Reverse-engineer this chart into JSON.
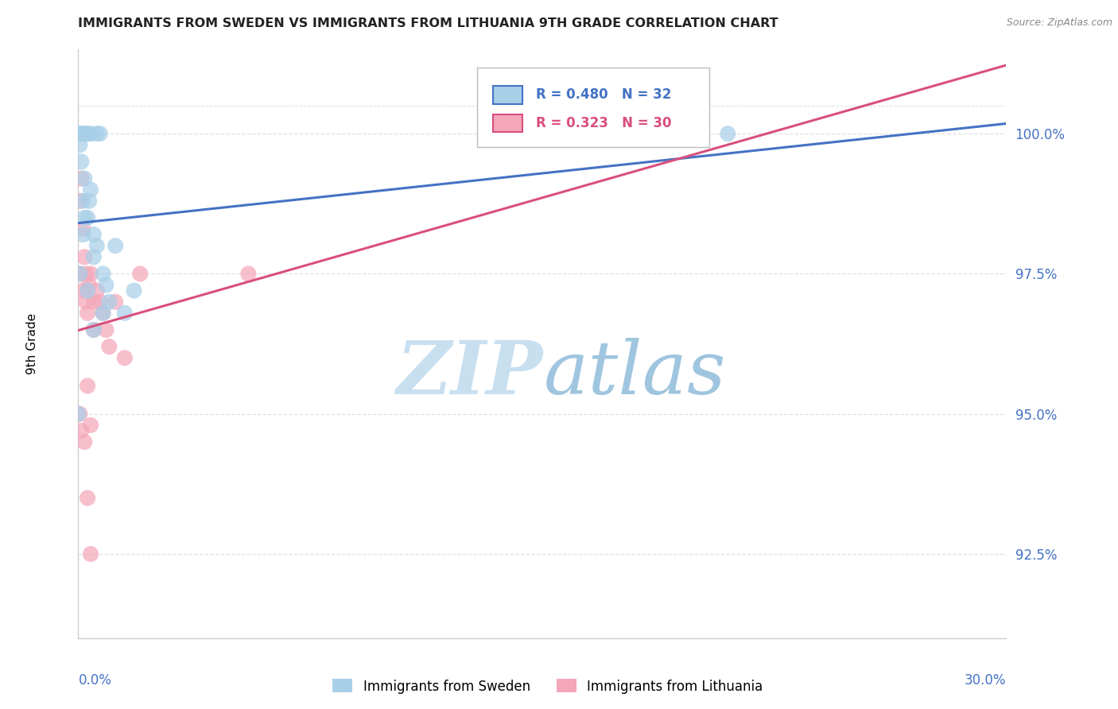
{
  "title": "IMMIGRANTS FROM SWEDEN VS IMMIGRANTS FROM LITHUANIA 9TH GRADE CORRELATION CHART",
  "source": "Source: ZipAtlas.com",
  "ylabel": "9th Grade",
  "xmin": 0.0,
  "xmax": 30.0,
  "ymin": 91.0,
  "ymax": 101.5,
  "yticks": [
    92.5,
    95.0,
    97.5,
    100.0
  ],
  "ytick_labels": [
    "92.5%",
    "95.0%",
    "97.5%",
    "100.0%"
  ],
  "sweden_color": "#a8cfe8",
  "lithuania_color": "#f4a7b9",
  "sweden_line_color": "#4472c4",
  "lithuania_line_color": "#d94f7c",
  "legend_sweden": "Immigrants from Sweden",
  "legend_lithuania": "Immigrants from Lithuania",
  "R_sweden": 0.48,
  "N_sweden": 32,
  "R_lithuania": 0.323,
  "N_lithuania": 30,
  "sweden_x": [
    0.05,
    0.05,
    0.1,
    0.1,
    0.15,
    0.15,
    0.2,
    0.2,
    0.25,
    0.3,
    0.3,
    0.35,
    0.4,
    0.4,
    0.5,
    0.5,
    0.6,
    0.6,
    0.7,
    0.8,
    0.9,
    1.0,
    1.2,
    1.5,
    1.8,
    0.05,
    0.15,
    0.3,
    0.5,
    0.8,
    21.0,
    0.0
  ],
  "sweden_y": [
    100.0,
    99.8,
    100.0,
    99.5,
    100.0,
    98.8,
    99.2,
    98.5,
    100.0,
    100.0,
    98.5,
    98.8,
    100.0,
    99.0,
    98.2,
    97.8,
    100.0,
    98.0,
    100.0,
    97.5,
    97.3,
    97.0,
    98.0,
    96.8,
    97.2,
    97.5,
    98.2,
    97.2,
    96.5,
    96.8,
    100.0,
    95.0
  ],
  "lithuania_x": [
    0.05,
    0.05,
    0.1,
    0.15,
    0.15,
    0.2,
    0.25,
    0.25,
    0.3,
    0.3,
    0.35,
    0.4,
    0.5,
    0.5,
    0.6,
    0.7,
    0.8,
    0.9,
    1.0,
    1.2,
    1.5,
    2.0,
    0.3,
    0.4,
    5.5,
    0.05,
    0.1,
    0.2,
    0.3,
    0.4
  ],
  "lithuania_y": [
    98.8,
    97.5,
    99.2,
    98.3,
    97.2,
    97.8,
    97.5,
    97.0,
    97.2,
    96.8,
    97.3,
    97.5,
    97.0,
    96.5,
    97.2,
    97.0,
    96.8,
    96.5,
    96.2,
    97.0,
    96.0,
    97.5,
    95.5,
    94.8,
    97.5,
    95.0,
    94.7,
    94.5,
    93.5,
    92.5
  ],
  "watermark_zip": "ZIP",
  "watermark_atlas": "atlas",
  "background_color": "#ffffff",
  "grid_color": "#e0e0e0",
  "axis_label_color": "#4472c4",
  "title_color": "#222222",
  "title_fontsize": 11.5,
  "source_color": "#888888"
}
